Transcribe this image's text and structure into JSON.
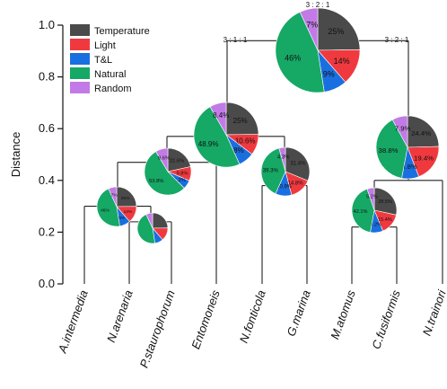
{
  "chart_data": {
    "type": "dendrogram-pie",
    "ylabel": "Distance",
    "ylim": [
      0,
      1.0
    ],
    "yticks": [
      0.0,
      0.2,
      0.4,
      0.6,
      0.8,
      1.0
    ],
    "ytick_labels": [
      "0.0",
      "0.2",
      "0.4",
      "0.6",
      "0.8",
      "1.0"
    ],
    "legend": {
      "position": "top-left",
      "entries": [
        {
          "name": "Temperature",
          "color": "#4a4a4a"
        },
        {
          "name": "Light",
          "color": "#f0393f"
        },
        {
          "name": "T&L",
          "color": "#1a6fe0"
        },
        {
          "name": "Natural",
          "color": "#16a865"
        },
        {
          "name": "Random",
          "color": "#c27be6"
        }
      ]
    },
    "taxa": [
      "A.intermedia",
      "N.arenaria",
      "P.staurophorum",
      "Entomoneis",
      "N.fonticola",
      "G.marina",
      "M.atomus",
      "C.fusiformis",
      "N.trainori"
    ],
    "nodes": [
      {
        "id": "n1",
        "height": 0.3,
        "pie": [
          25,
          14,
          9,
          46,
          7
        ],
        "labels": [
          "25%",
          "14%",
          "9%",
          "46%",
          "7%"
        ]
      },
      {
        "id": "n2",
        "height": 0.24,
        "pie": [
          25,
          14,
          9,
          46,
          7
        ],
        "labels": [
          "",
          "",
          "",
          "",
          ""
        ]
      },
      {
        "id": "n3",
        "height": 0.47,
        "pie": [
          21.6,
          9.8,
          6.2,
          53.8,
          8.6
        ],
        "labels": [
          "21.6%",
          "9.8%",
          "6.2%",
          "53.8%",
          "8.6%"
        ]
      },
      {
        "id": "n4",
        "height": 0.57,
        "pie": [
          25,
          10.6,
          8,
          48.9,
          8.4
        ],
        "labels": [
          "25%",
          "10.6%",
          "8%",
          "48.9%",
          "8.4%"
        ]
      },
      {
        "id": "n5",
        "height": 0.38,
        "pie": [
          31.4,
          14.8,
          10.9,
          39.3,
          4.3
        ],
        "labels": [
          "31.4%",
          "14.8%",
          "10.9%",
          "39.3%",
          "4.3%"
        ]
      },
      {
        "id": "n6",
        "height": 0.94,
        "pie": [
          25,
          14,
          9,
          46,
          7
        ],
        "labels": [
          "25%",
          "14%",
          "9%",
          "46%",
          "7%"
        ]
      },
      {
        "id": "n7",
        "height": 0.22,
        "pie": [
          28.5,
          15.4,
          9.2,
          42.1,
          5.2
        ],
        "labels": [
          "28.5%",
          "15.4%",
          "9.2%",
          "42.1%",
          "5.2%"
        ]
      },
      {
        "id": "n8",
        "height": 0.4,
        "pie": [
          24.4,
          19.4,
          8.8,
          38.8,
          7.9
        ],
        "labels": [
          "24.4%",
          "19.4%",
          "8.8%",
          "38.8%",
          "7.9%"
        ]
      }
    ],
    "ratio_labels": [
      "3 : 2 : 1",
      "3 : 1 : 1",
      "3 : 2 : 1"
    ]
  }
}
